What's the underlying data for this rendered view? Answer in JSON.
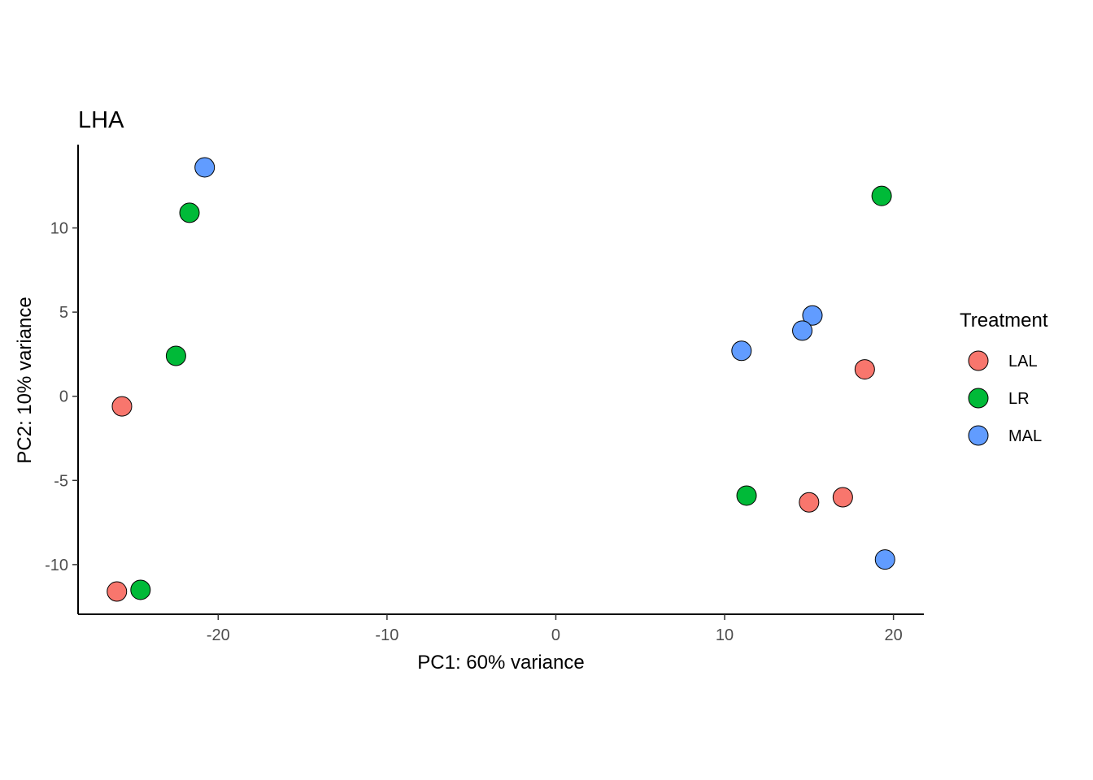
{
  "chart_data": {
    "type": "scatter",
    "title": "LHA",
    "xlabel": "PC1: 60% variance",
    "ylabel": "PC2: 10% variance",
    "xlim": [
      -28.3,
      21.8
    ],
    "ylim": [
      -12.95,
      14.95
    ],
    "xticks": [
      -20,
      -10,
      0,
      10,
      20
    ],
    "yticks": [
      -10,
      -5,
      0,
      5,
      10
    ],
    "xtick_labels": [
      "-20",
      "-10",
      "0",
      "10",
      "20"
    ],
    "ytick_labels": [
      "-10",
      "-5",
      "0",
      "5",
      "10"
    ],
    "grid": false,
    "legend": {
      "title": "Treatment",
      "position": "right"
    },
    "series": [
      {
        "name": "LAL",
        "color": "#F8766D",
        "points": [
          {
            "x": -25.7,
            "y": -0.6
          },
          {
            "x": -26.0,
            "y": -11.6
          },
          {
            "x": 18.3,
            "y": 1.6
          },
          {
            "x": 15.0,
            "y": -6.3
          },
          {
            "x": 17.0,
            "y": -6.0
          }
        ]
      },
      {
        "name": "LR",
        "color": "#00BA38",
        "points": [
          {
            "x": -21.7,
            "y": 10.9
          },
          {
            "x": -22.5,
            "y": 2.4
          },
          {
            "x": -24.6,
            "y": -11.5
          },
          {
            "x": 19.3,
            "y": 11.9
          },
          {
            "x": 11.3,
            "y": -5.9
          }
        ]
      },
      {
        "name": "MAL",
        "color": "#619CFF",
        "points": [
          {
            "x": -20.8,
            "y": 13.6
          },
          {
            "x": 15.2,
            "y": 4.8
          },
          {
            "x": 14.6,
            "y": 3.9
          },
          {
            "x": 11.0,
            "y": 2.7
          },
          {
            "x": 19.5,
            "y": -9.7
          }
        ]
      }
    ]
  }
}
